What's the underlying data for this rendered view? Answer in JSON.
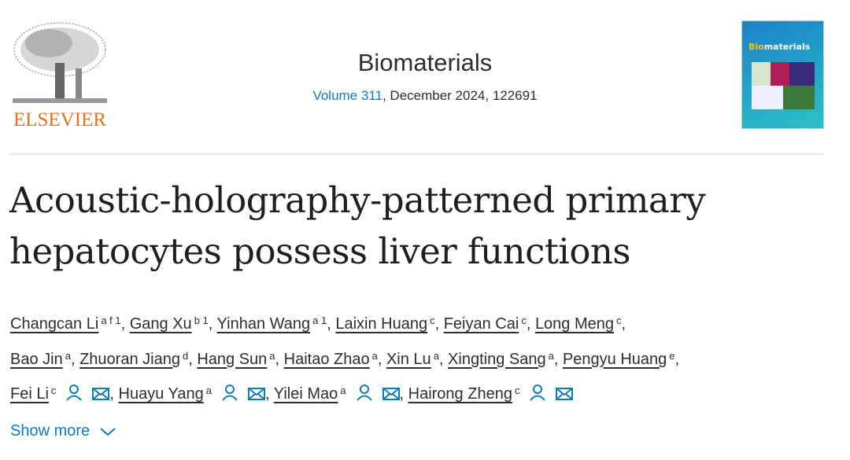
{
  "publisher": {
    "name": "ELSEVIER"
  },
  "journal": {
    "title": "Biomaterials",
    "volume_link": "Volume 311",
    "details": ", December 2024, 122691",
    "cover_title_a": "Bio",
    "cover_title_b": "materials"
  },
  "article": {
    "title": "Acoustic-holography-patterned primary hepatocytes possess liver functions"
  },
  "authors": [
    [
      {
        "name": "Changcan Li",
        "sup": "a f 1"
      },
      {
        "name": "Gang Xu",
        "sup": "b 1"
      },
      {
        "name": "Yinhan Wang",
        "sup": "a 1"
      },
      {
        "name": "Laixin Huang",
        "sup": "c"
      },
      {
        "name": "Feiyan Cai",
        "sup": "c"
      },
      {
        "name": "Long Meng",
        "sup": "c",
        "trail": true
      }
    ],
    [
      {
        "name": "Bao Jin",
        "sup": "a"
      },
      {
        "name": "Zhuoran Jiang",
        "sup": "d"
      },
      {
        "name": "Hang Sun",
        "sup": "a"
      },
      {
        "name": "Haitao Zhao",
        "sup": "a"
      },
      {
        "name": "Xin Lu",
        "sup": "a"
      },
      {
        "name": "Xingting Sang",
        "sup": "a"
      },
      {
        "name": "Pengyu Huang",
        "sup": "e",
        "trail": true
      }
    ],
    [
      {
        "name": "Fei Li",
        "sup": "c",
        "icons": true
      },
      {
        "name": "Huayu Yang",
        "sup": "a",
        "icons": true
      },
      {
        "name": "Yilei Mao",
        "sup": "a",
        "icons": true
      },
      {
        "name": "Hairong Zheng",
        "sup": "c",
        "icons": true
      }
    ]
  ],
  "show_more": "Show more",
  "colors": {
    "accent": "#0c7dbb",
    "publisher": "#e9711c"
  }
}
